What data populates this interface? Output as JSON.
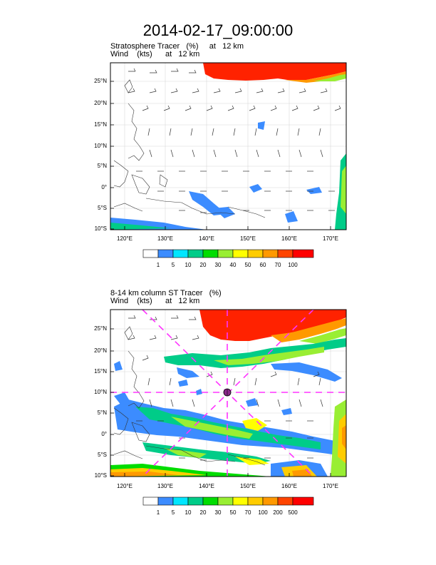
{
  "title": "2014-02-17_09:00:00",
  "panels": [
    {
      "subtitle": "Stratosphere Tracer   (%)     at   12 km",
      "wind_label": "Wind    (kts)      at   12 km",
      "lat_labels": [
        "25°N",
        "20°N",
        "15°N",
        "10°N",
        "5°N",
        "0°",
        "5°S",
        "10°S"
      ],
      "lon_labels": [
        "120°E",
        "130°E",
        "140°E",
        "150°E",
        "160°E",
        "170°E"
      ],
      "colorbar_labels": [
        "1",
        "5",
        "10",
        "20",
        "30",
        "40",
        "50",
        "60",
        "70",
        "100"
      ],
      "colorbar_colors": [
        "#ffffff",
        "#3c8cff",
        "#00e6ff",
        "#00cc88",
        "#00dd00",
        "#99ee33",
        "#ffff00",
        "#ffcc00",
        "#ff9900",
        "#ff4400",
        "#ff0000"
      ],
      "cross_section_lines": false
    },
    {
      "subtitle": "8-14 km column ST Tracer   (%)",
      "wind_label": "Wind    (kts)      at   12 km",
      "lat_labels": [
        "25°N",
        "20°N",
        "15°N",
        "10°N",
        "5°N",
        "0°",
        "5°S",
        "10°S"
      ],
      "lon_labels": [
        "120°E",
        "130°E",
        "140°E",
        "150°E",
        "160°E",
        "170°E"
      ],
      "colorbar_labels": [
        "1",
        "5",
        "10",
        "20",
        "30",
        "50",
        "70",
        "100",
        "200",
        "500"
      ],
      "colorbar_colors": [
        "#ffffff",
        "#3c8cff",
        "#00e6ff",
        "#00cc88",
        "#00dd00",
        "#99ee33",
        "#ffff00",
        "#ffcc00",
        "#ff9900",
        "#ff4400",
        "#ff0000"
      ],
      "cross_section_lines": true,
      "center_marker": "typhoon-center-icon"
    }
  ]
}
